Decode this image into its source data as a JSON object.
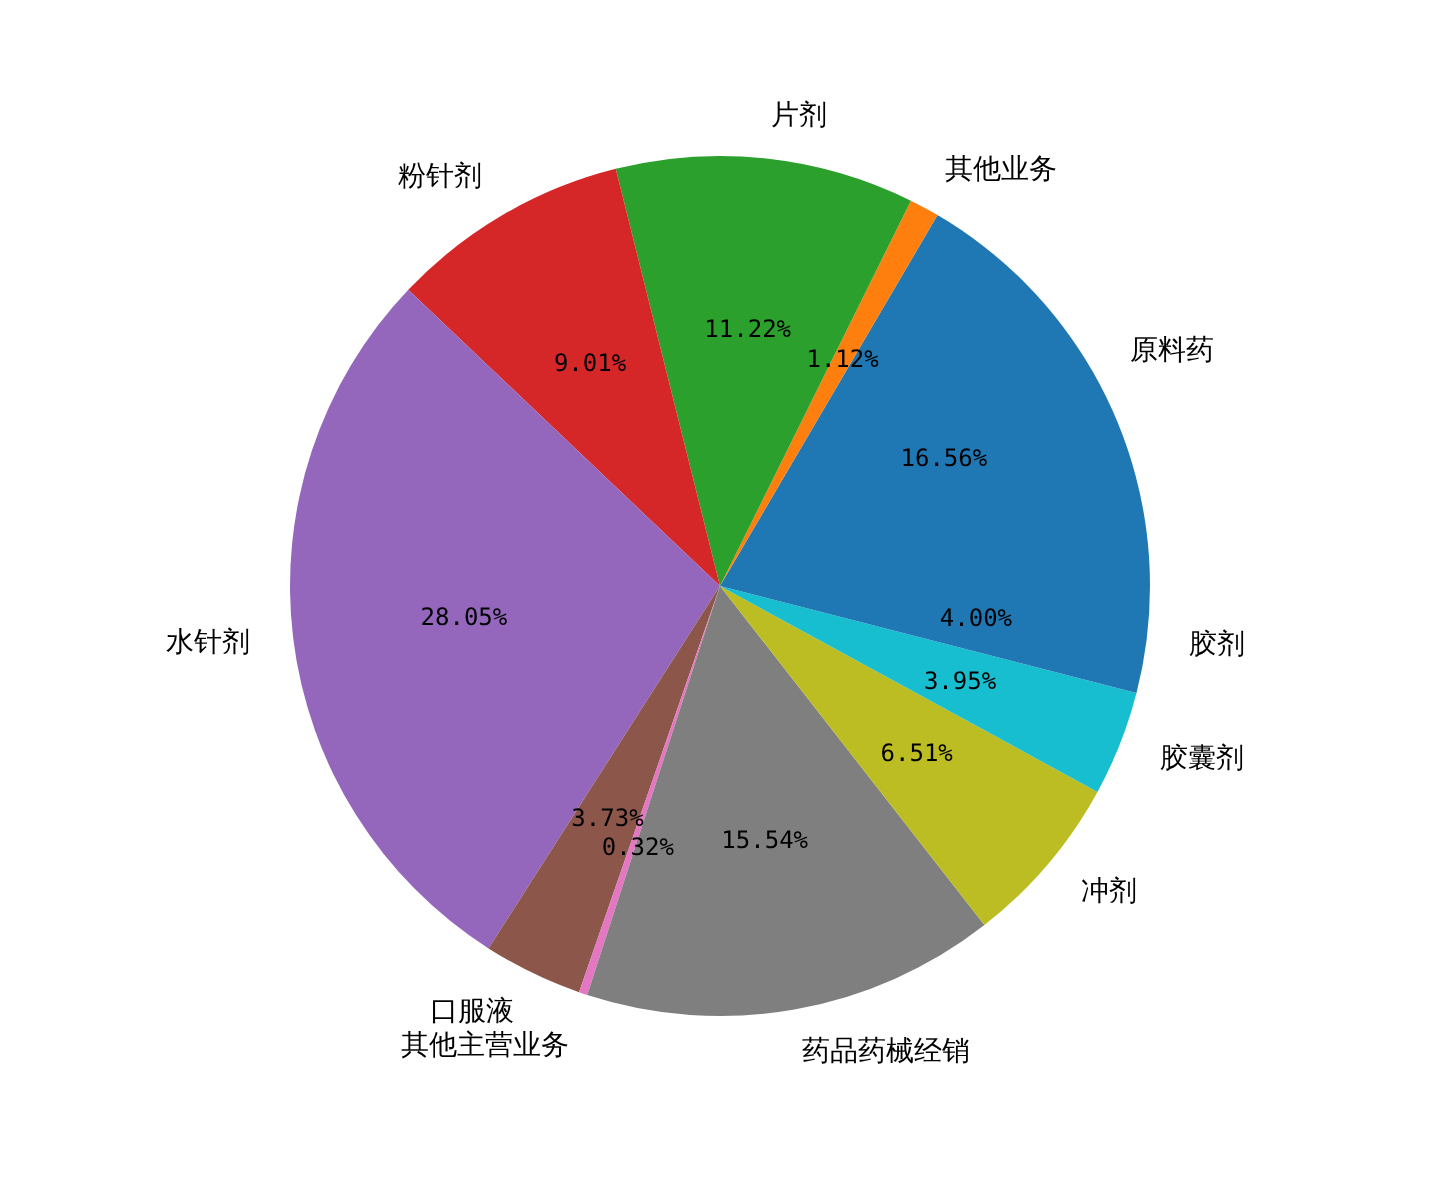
{
  "chart_data": {
    "type": "pie",
    "categories": [
      "原料药",
      "其他业务",
      "片剂",
      "粉针剂",
      "水针剂",
      "口服液",
      "其他主营业务",
      "药品药械经销",
      "冲剂",
      "胶囊剂",
      "胶剂"
    ],
    "values": [
      16.56,
      1.12,
      11.22,
      9.01,
      28.05,
      3.73,
      0.32,
      15.54,
      6.51,
      3.95,
      4.0
    ],
    "colors": [
      "#1f77b4",
      "#ff7f0e",
      "#2ca02c",
      "#d62728",
      "#9467bd",
      "#8c564b",
      "#e377c2",
      "#7f7f7f",
      "#bcbd22",
      "#17becf",
      "#1f77b4"
    ],
    "value_labels": [
      "16.56%",
      "1.12%",
      "11.22%",
      "9.01%",
      "28.05%",
      "3.73%",
      "0.32%",
      "15.54%",
      "6.51%",
      "3.95%",
      "4.00%"
    ]
  }
}
